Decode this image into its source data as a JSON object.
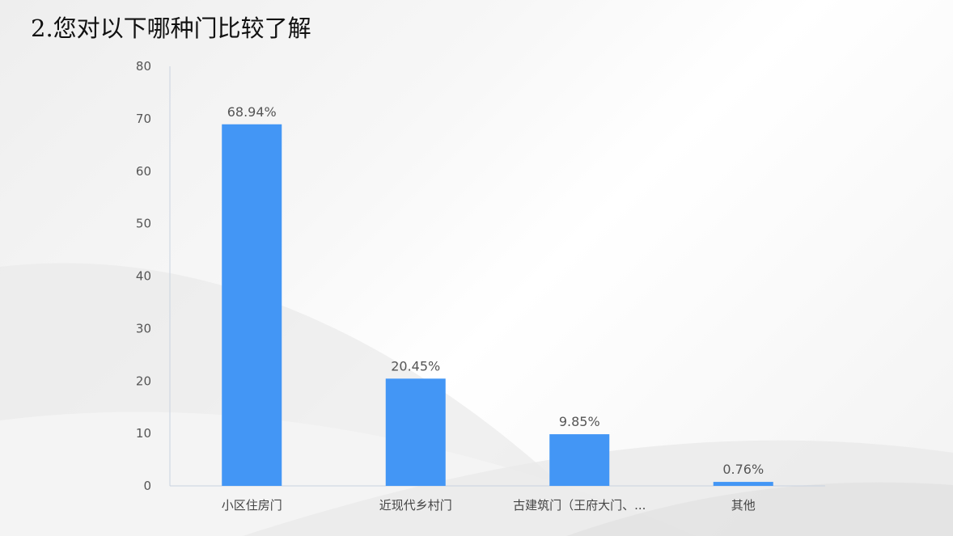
{
  "title": "2.您对以下哪种门比较了解",
  "colors": {
    "bar": "#4396f5",
    "axis": "#c9d2e0",
    "text": "#555555"
  },
  "chart_data": {
    "type": "bar",
    "categories": [
      "小区住房门",
      "近现代乡村门",
      "古建筑门（王府大门、...",
      "其他"
    ],
    "values": [
      68.94,
      20.45,
      9.85,
      0.76
    ],
    "data_labels": [
      "68.94%",
      "20.45%",
      "9.85%",
      "0.76%"
    ],
    "ylim": [
      0,
      80
    ],
    "yticks": [
      0,
      10,
      20,
      30,
      40,
      50,
      60,
      70,
      80
    ],
    "grid": false,
    "xlabel": "",
    "ylabel": ""
  }
}
